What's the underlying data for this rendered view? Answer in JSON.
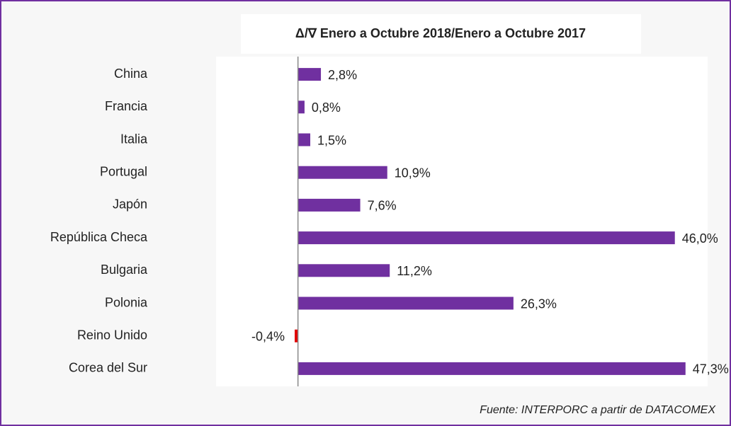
{
  "chart_data": {
    "type": "barh",
    "title": "Δ/∇  Enero a Octubre 2018/Enero a Octubre 2017",
    "categories": [
      "China",
      "Francia",
      "Italia",
      "Portugal",
      "Japón",
      "República Checa",
      "Bulgaria",
      "Polonia",
      "Reino Unido",
      "Corea del Sur"
    ],
    "values": [
      2.8,
      0.8,
      1.5,
      10.9,
      7.6,
      46.0,
      11.2,
      26.3,
      -0.4,
      47.3
    ],
    "value_labels": [
      "2,8%",
      "0,8%",
      "1,5%",
      "10,9%",
      "7,6%",
      "46,0%",
      "11,2%",
      "26,3%",
      "-0,4%",
      "47,3%"
    ],
    "color": "#7030a0",
    "negative_color": "#e00000",
    "xlim": [
      -10,
      50
    ],
    "source": "Fuente: INTERPORC  a partir de DATACOMEX"
  }
}
